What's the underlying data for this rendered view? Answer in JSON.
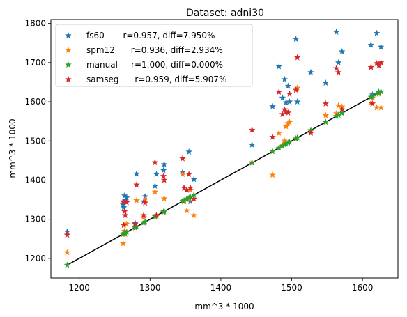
{
  "chart_data": {
    "type": "scatter",
    "title": "Dataset: adni30",
    "xlabel": "mm^3 * 1000",
    "ylabel": "mm^3 * 1000",
    "xlim": [
      1160,
      1650
    ],
    "ylim": [
      1150,
      1810
    ],
    "xticks": [
      1200,
      1300,
      1400,
      1500,
      1600
    ],
    "yticks": [
      1200,
      1300,
      1400,
      1500,
      1600,
      1700,
      1800
    ],
    "grid": false,
    "legend_position": "top-left",
    "reference_line": {
      "x": [
        1183,
        1626
      ],
      "y": [
        1183,
        1626
      ],
      "color": "#000000"
    },
    "x": [
      1183,
      1262,
      1263,
      1264,
      1265,
      1267,
      1279,
      1281,
      1291,
      1293,
      1307,
      1309,
      1319,
      1320,
      1346,
      1348,
      1352,
      1355,
      1357,
      1362,
      1444,
      1473,
      1482,
      1487,
      1490,
      1492,
      1495,
      1497,
      1506,
      1508,
      1527,
      1548,
      1563,
      1566,
      1571,
      1612,
      1614,
      1620,
      1623,
      1626
    ],
    "series": [
      {
        "name": "fs60",
        "legend": "fs60       r=0.957, diff=7.950%",
        "color": "#1f77b4",
        "y": [
          1268,
          1337,
          1330,
          1360,
          1348,
          1355,
          1290,
          1416,
          1345,
          1358,
          1385,
          1415,
          1425,
          1440,
          1420,
          1345,
          1375,
          1472,
          1345,
          1402,
          1490,
          1588,
          1690,
          1610,
          1657,
          1598,
          1640,
          1600,
          1760,
          1600,
          1675,
          1648,
          1778,
          1700,
          1728,
          1745,
          1618,
          1775,
          1625,
          1740
        ]
      },
      {
        "name": "spm12",
        "legend": "spm12      r=0.936, diff=2.934%",
        "color": "#ff7f0e",
        "y": [
          1215,
          1238,
          1285,
          1270,
          1262,
          1288,
          1278,
          1348,
          1305,
          1350,
          1370,
          1307,
          1318,
          1353,
          1415,
          1345,
          1322,
          1350,
          1375,
          1310,
          1445,
          1413,
          1520,
          1490,
          1500,
          1537,
          1545,
          1548,
          1505,
          1635,
          1525,
          1565,
          1570,
          1590,
          1587,
          1597,
          1610,
          1585,
          1620,
          1585
        ]
      },
      {
        "name": "manual",
        "legend": "manual     r=1.000, diff=0.000%",
        "color": "#2ca02c",
        "y": [
          1183,
          1262,
          1263,
          1264,
          1265,
          1267,
          1279,
          1281,
          1291,
          1293,
          1307,
          1309,
          1319,
          1320,
          1346,
          1348,
          1352,
          1355,
          1357,
          1362,
          1444,
          1473,
          1482,
          1487,
          1490,
          1492,
          1495,
          1497,
          1506,
          1508,
          1527,
          1548,
          1563,
          1566,
          1571,
          1612,
          1614,
          1620,
          1623,
          1626
        ]
      },
      {
        "name": "samseg",
        "legend": "samseg      r=0.959, diff=5.907%",
        "color": "#d62728",
        "y": [
          1260,
          1345,
          1285,
          1320,
          1310,
          1343,
          1288,
          1388,
          1310,
          1342,
          1445,
          1310,
          1410,
          1400,
          1455,
          1380,
          1375,
          1415,
          1380,
          1352,
          1528,
          1510,
          1625,
          1568,
          1580,
          1575,
          1572,
          1620,
          1630,
          1713,
          1520,
          1595,
          1685,
          1675,
          1580,
          1688,
          1595,
          1698,
          1692,
          1700
        ]
      }
    ]
  }
}
